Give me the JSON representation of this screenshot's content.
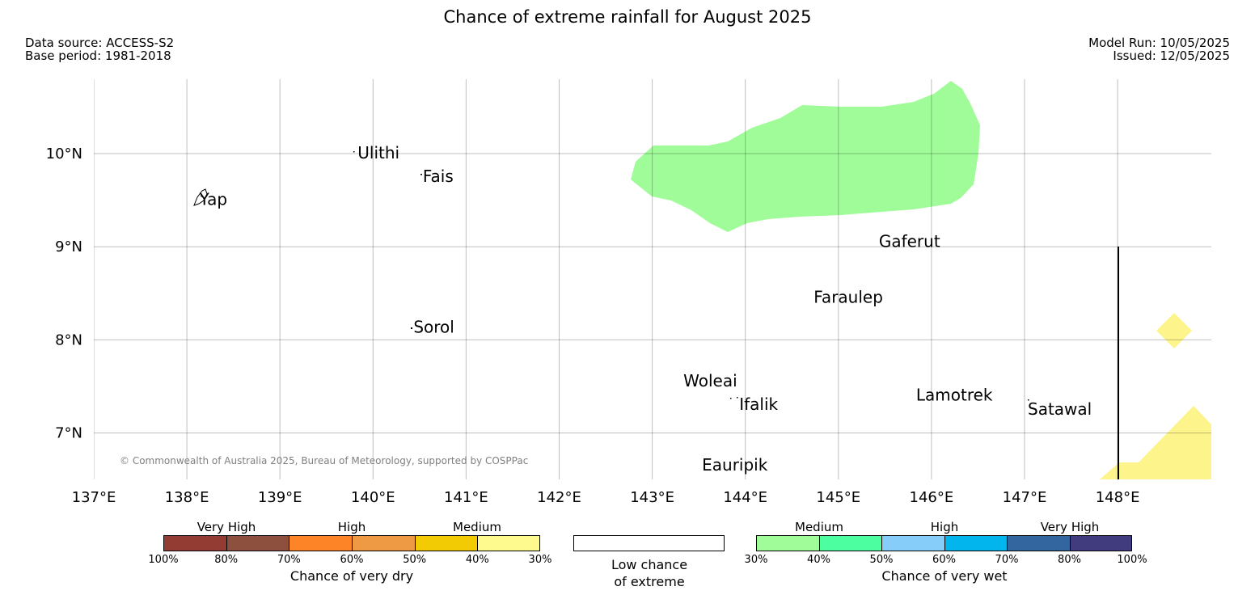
{
  "title": "Chance of extreme rainfall for August 2025",
  "meta": {
    "data_source": "Data source: ACCESS-S2",
    "base_period": "Base period: 1981-2018",
    "model_run": "Model Run: 10/05/2025",
    "issued": "Issued: 12/05/2025"
  },
  "copyright": "© Commonwealth of Australia 2025, Bureau of Meteorology, supported by COSPPac",
  "axes": {
    "lon_ticks": [
      "137°E",
      "138°E",
      "139°E",
      "140°E",
      "141°E",
      "142°E",
      "143°E",
      "144°E",
      "145°E",
      "146°E",
      "147°E",
      "148°E"
    ],
    "lat_ticks": [
      "10°N",
      "9°N",
      "8°N",
      "7°N"
    ],
    "lon_range": [
      137,
      149
    ],
    "lat_range": [
      6.5,
      10.8
    ]
  },
  "places": [
    {
      "name": "Yap",
      "lon": 138.1,
      "lat": 9.5
    },
    {
      "name": "Ulithi",
      "lon": 139.8,
      "lat": 10.0
    },
    {
      "name": "Fais",
      "lon": 140.5,
      "lat": 9.75
    },
    {
      "name": "Sorol",
      "lon": 140.4,
      "lat": 8.13
    },
    {
      "name": "Gaferut",
      "lon": 145.4,
      "lat": 9.05
    },
    {
      "name": "Faraulep",
      "lon": 144.7,
      "lat": 8.45
    },
    {
      "name": "Woleai",
      "lon": 143.3,
      "lat": 7.55
    },
    {
      "name": "Ifalik",
      "lon": 143.9,
      "lat": 7.3
    },
    {
      "name": "Lamotrek",
      "lon": 145.8,
      "lat": 7.4
    },
    {
      "name": "Satawal",
      "lon": 147.0,
      "lat": 7.25
    },
    {
      "name": "Eauripik",
      "lon": 143.5,
      "lat": 6.65
    }
  ],
  "regions": [
    {
      "category": "wet-medium",
      "color": "#a0fc98"
    },
    {
      "category": "dry-medium",
      "color": "#fef48c"
    }
  ],
  "legend": {
    "dry": {
      "groups": [
        "Very High",
        "High",
        "Medium"
      ],
      "colors": [
        "#923c34",
        "#8d503e",
        "#fd8527",
        "#ee9944",
        "#f3cb05",
        "#fefa8e"
      ],
      "ticks": [
        "100%",
        "80%",
        "70%",
        "60%",
        "50%",
        "40%",
        "30%"
      ],
      "caption": "Chance of very dry"
    },
    "neutral": {
      "line1": "Low chance",
      "line2": "of extreme"
    },
    "wet": {
      "groups": [
        "Medium",
        "High",
        "Very High"
      ],
      "colors": [
        "#a0fc98",
        "#4dfea1",
        "#86cdf9",
        "#02b5ed",
        "#33669e",
        "#403c7e"
      ],
      "ticks": [
        "30%",
        "40%",
        "50%",
        "60%",
        "70%",
        "80%",
        "100%"
      ],
      "caption": "Chance of very wet"
    }
  }
}
